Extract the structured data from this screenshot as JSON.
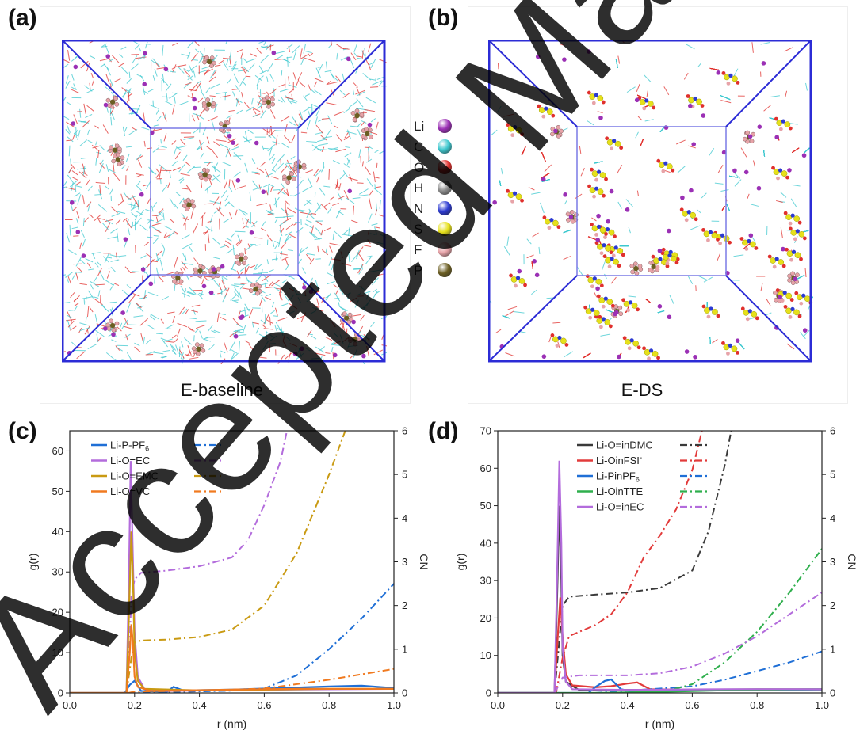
{
  "panels": {
    "a": {
      "letter": "(a)",
      "caption": "E-baseline"
    },
    "b": {
      "letter": "(b)",
      "caption": "E-DS"
    },
    "c": {
      "letter": "(c)"
    },
    "d": {
      "letter": "(d)"
    }
  },
  "element_legend": [
    {
      "symbol": "Li",
      "color": "#9b30b5"
    },
    {
      "symbol": "C",
      "color": "#3ec8cf"
    },
    {
      "symbol": "O",
      "color": "#e0302d"
    },
    {
      "symbol": "H",
      "color": "#8a8a8a"
    },
    {
      "symbol": "N",
      "color": "#2c3ad1"
    },
    {
      "symbol": "S",
      "color": "#e6e01a"
    },
    {
      "symbol": "F",
      "color": "#e7a3a8"
    },
    {
      "symbol": "P",
      "color": "#6b5e22"
    }
  ],
  "watermark": {
    "text": "Accepted Manuscript",
    "color": "#000000"
  },
  "chart_data": [
    {
      "id": "c",
      "type": "line",
      "xlabel": "r (nm)",
      "ylabel": "g(r)",
      "y2label": "CN",
      "xlim": [
        0.0,
        1.0
      ],
      "ylim": [
        0,
        65
      ],
      "y2lim": [
        0,
        6
      ],
      "xticks": [
        "0.0",
        "0.2",
        "0.4",
        "0.6",
        "0.8",
        "1.0"
      ],
      "yticks": [
        "0",
        "10",
        "20",
        "30",
        "40",
        "50",
        "60"
      ],
      "y2ticks": [
        "0",
        "1",
        "2",
        "3",
        "4",
        "5",
        "6"
      ],
      "legend_position": "top-left",
      "series": [
        {
          "name": "Li-P-PF6",
          "name_base": "Li-P-PF",
          "name_sub": "6",
          "color": "#1f6fd6",
          "gr": [
            [
              0,
              0
            ],
            [
              0.17,
              0
            ],
            [
              0.185,
              2
            ],
            [
              0.2,
              3
            ],
            [
              0.22,
              0.5
            ],
            [
              0.3,
              0.3
            ],
            [
              0.32,
              1.5
            ],
            [
              0.35,
              0.6
            ],
            [
              0.5,
              0.8
            ],
            [
              0.65,
              1.2
            ],
            [
              0.8,
              1.6
            ],
            [
              0.9,
              1.8
            ],
            [
              0.95,
              1.5
            ],
            [
              1.0,
              1.2
            ]
          ],
          "cn": [
            [
              0.18,
              0
            ],
            [
              0.3,
              0.02
            ],
            [
              0.5,
              0.05
            ],
            [
              0.6,
              0.1
            ],
            [
              0.7,
              0.4
            ],
            [
              0.8,
              1.0
            ],
            [
              0.9,
              1.7
            ],
            [
              1.0,
              2.5
            ]
          ]
        },
        {
          "name": "Li-O=EC",
          "color": "#b36cdc",
          "gr": [
            [
              0,
              0
            ],
            [
              0.175,
              0
            ],
            [
              0.183,
              30
            ],
            [
              0.188,
              57.5
            ],
            [
              0.193,
              40
            ],
            [
              0.2,
              15
            ],
            [
              0.21,
              4
            ],
            [
              0.23,
              1
            ],
            [
              0.3,
              0.5
            ],
            [
              0.5,
              0.7
            ],
            [
              0.8,
              0.9
            ],
            [
              1.0,
              1.0
            ]
          ],
          "cn": [
            [
              0.175,
              0
            ],
            [
              0.185,
              1.2
            ],
            [
              0.19,
              2.2
            ],
            [
              0.2,
              2.6
            ],
            [
              0.22,
              2.75
            ],
            [
              0.3,
              2.8
            ],
            [
              0.4,
              2.9
            ],
            [
              0.5,
              3.1
            ],
            [
              0.55,
              3.5
            ],
            [
              0.6,
              4.3
            ],
            [
              0.65,
              5.3
            ],
            [
              0.67,
              6.0
            ]
          ]
        },
        {
          "name": "Li-O=EMC",
          "color": "#c99a12",
          "gr": [
            [
              0,
              0
            ],
            [
              0.175,
              0
            ],
            [
              0.183,
              20
            ],
            [
              0.19,
              40
            ],
            [
              0.196,
              25
            ],
            [
              0.2,
              10
            ],
            [
              0.21,
              3
            ],
            [
              0.23,
              1
            ],
            [
              0.4,
              0.6
            ],
            [
              0.6,
              0.8
            ],
            [
              0.8,
              1.0
            ],
            [
              1.0,
              1.0
            ]
          ],
          "cn": [
            [
              0.175,
              0
            ],
            [
              0.19,
              0.8
            ],
            [
              0.2,
              1.15
            ],
            [
              0.22,
              1.2
            ],
            [
              0.3,
              1.22
            ],
            [
              0.4,
              1.28
            ],
            [
              0.5,
              1.45
            ],
            [
              0.6,
              2.0
            ],
            [
              0.7,
              3.2
            ],
            [
              0.8,
              5.0
            ],
            [
              0.85,
              6.0
            ]
          ]
        },
        {
          "name": "Li-O=VC",
          "color": "#f07a20",
          "gr": [
            [
              0,
              0
            ],
            [
              0.175,
              0
            ],
            [
              0.185,
              10
            ],
            [
              0.19,
              17
            ],
            [
              0.195,
              12
            ],
            [
              0.2,
              4
            ],
            [
              0.21,
              1.5
            ],
            [
              0.25,
              0.5
            ],
            [
              0.5,
              0.8
            ],
            [
              0.7,
              1.0
            ],
            [
              1.0,
              1.0
            ]
          ],
          "cn": [
            [
              0.18,
              0
            ],
            [
              0.2,
              0.03
            ],
            [
              0.4,
              0.05
            ],
            [
              0.6,
              0.1
            ],
            [
              0.8,
              0.3
            ],
            [
              1.0,
              0.55
            ]
          ]
        }
      ]
    },
    {
      "id": "d",
      "type": "line",
      "xlabel": "r (nm)",
      "ylabel": "g(r)",
      "y2label": "CN",
      "xlim": [
        0.0,
        1.0
      ],
      "ylim": [
        0,
        70
      ],
      "y2lim": [
        0,
        6
      ],
      "xticks": [
        "0.0",
        "0.2",
        "0.4",
        "0.6",
        "0.8",
        "1.0"
      ],
      "yticks": [
        "0",
        "10",
        "20",
        "30",
        "40",
        "50",
        "60",
        "70"
      ],
      "y2ticks": [
        "0",
        "1",
        "2",
        "3",
        "4",
        "5",
        "6"
      ],
      "legend_position": "top-center",
      "series": [
        {
          "name": "Li-O=inDMC",
          "color": "#3a3a3a",
          "gr": [
            [
              0,
              0
            ],
            [
              0.175,
              0
            ],
            [
              0.183,
              25
            ],
            [
              0.19,
              50
            ],
            [
              0.196,
              30
            ],
            [
              0.2,
              10
            ],
            [
              0.21,
              3
            ],
            [
              0.25,
              0.8
            ],
            [
              0.5,
              0.8
            ],
            [
              0.8,
              1.0
            ],
            [
              1.0,
              1.0
            ]
          ],
          "cn": [
            [
              0.175,
              0
            ],
            [
              0.19,
              1.2
            ],
            [
              0.2,
              2.0
            ],
            [
              0.22,
              2.2
            ],
            [
              0.3,
              2.25
            ],
            [
              0.4,
              2.3
            ],
            [
              0.5,
              2.4
            ],
            [
              0.6,
              2.8
            ],
            [
              0.65,
              3.7
            ],
            [
              0.7,
              5.2
            ],
            [
              0.72,
              6.0
            ]
          ]
        },
        {
          "name": "Li-OinFSI",
          "name_sup": "-",
          "color": "#e23b3b",
          "gr": [
            [
              0,
              0
            ],
            [
              0.175,
              0
            ],
            [
              0.185,
              15
            ],
            [
              0.193,
              25.5
            ],
            [
              0.2,
              15
            ],
            [
              0.21,
              5
            ],
            [
              0.23,
              2
            ],
            [
              0.3,
              1.5
            ],
            [
              0.35,
              1.8
            ],
            [
              0.4,
              2.5
            ],
            [
              0.43,
              2.8
            ],
            [
              0.47,
              1.0
            ],
            [
              0.6,
              0.8
            ],
            [
              0.8,
              0.9
            ],
            [
              1.0,
              0.9
            ]
          ],
          "cn": [
            [
              0.18,
              0
            ],
            [
              0.2,
              0.8
            ],
            [
              0.22,
              1.3
            ],
            [
              0.3,
              1.55
            ],
            [
              0.35,
              1.8
            ],
            [
              0.4,
              2.3
            ],
            [
              0.45,
              3.1
            ],
            [
              0.5,
              3.6
            ],
            [
              0.55,
              4.2
            ],
            [
              0.6,
              5.1
            ],
            [
              0.63,
              6.0
            ]
          ]
        },
        {
          "name": "Li-PinPF6",
          "name_base": "Li-PinPF",
          "name_sub": "6",
          "color": "#1f6fd6",
          "gr": [
            [
              0,
              0
            ],
            [
              0.28,
              0
            ],
            [
              0.3,
              1.5
            ],
            [
              0.33,
              3.2
            ],
            [
              0.35,
              3.6
            ],
            [
              0.38,
              1.0
            ],
            [
              0.42,
              0.3
            ],
            [
              0.5,
              0.5
            ],
            [
              0.7,
              0.8
            ],
            [
              1.0,
              0.9
            ]
          ],
          "cn": [
            [
              0.3,
              0
            ],
            [
              0.4,
              0.05
            ],
            [
              0.5,
              0.1
            ],
            [
              0.6,
              0.15
            ],
            [
              0.7,
              0.3
            ],
            [
              0.8,
              0.5
            ],
            [
              0.9,
              0.7
            ],
            [
              1.0,
              0.95
            ]
          ]
        },
        {
          "name": "Li-OinTTE",
          "color": "#2faf4d",
          "gr": [
            [
              0,
              0
            ],
            [
              0.3,
              0
            ],
            [
              0.5,
              0.3
            ],
            [
              0.7,
              0.7
            ],
            [
              0.9,
              0.9
            ],
            [
              1.0,
              1.0
            ]
          ],
          "cn": [
            [
              0.5,
              0
            ],
            [
              0.6,
              0.2
            ],
            [
              0.7,
              0.7
            ],
            [
              0.8,
              1.4
            ],
            [
              0.9,
              2.3
            ],
            [
              1.0,
              3.3
            ]
          ]
        },
        {
          "name": "Li-O=inEC",
          "color": "#b36cdc",
          "gr": [
            [
              0,
              0
            ],
            [
              0.175,
              0
            ],
            [
              0.183,
              30
            ],
            [
              0.19,
              62
            ],
            [
              0.196,
              40
            ],
            [
              0.2,
              12
            ],
            [
              0.21,
              3
            ],
            [
              0.23,
              1
            ],
            [
              0.4,
              0.8
            ],
            [
              0.7,
              1.0
            ],
            [
              1.0,
              1.0
            ]
          ],
          "cn": [
            [
              0.175,
              0
            ],
            [
              0.19,
              0.2
            ],
            [
              0.2,
              0.35
            ],
            [
              0.25,
              0.4
            ],
            [
              0.4,
              0.4
            ],
            [
              0.5,
              0.45
            ],
            [
              0.6,
              0.6
            ],
            [
              0.7,
              0.9
            ],
            [
              0.8,
              1.3
            ],
            [
              0.9,
              1.8
            ],
            [
              1.0,
              2.3
            ]
          ]
        }
      ]
    }
  ]
}
